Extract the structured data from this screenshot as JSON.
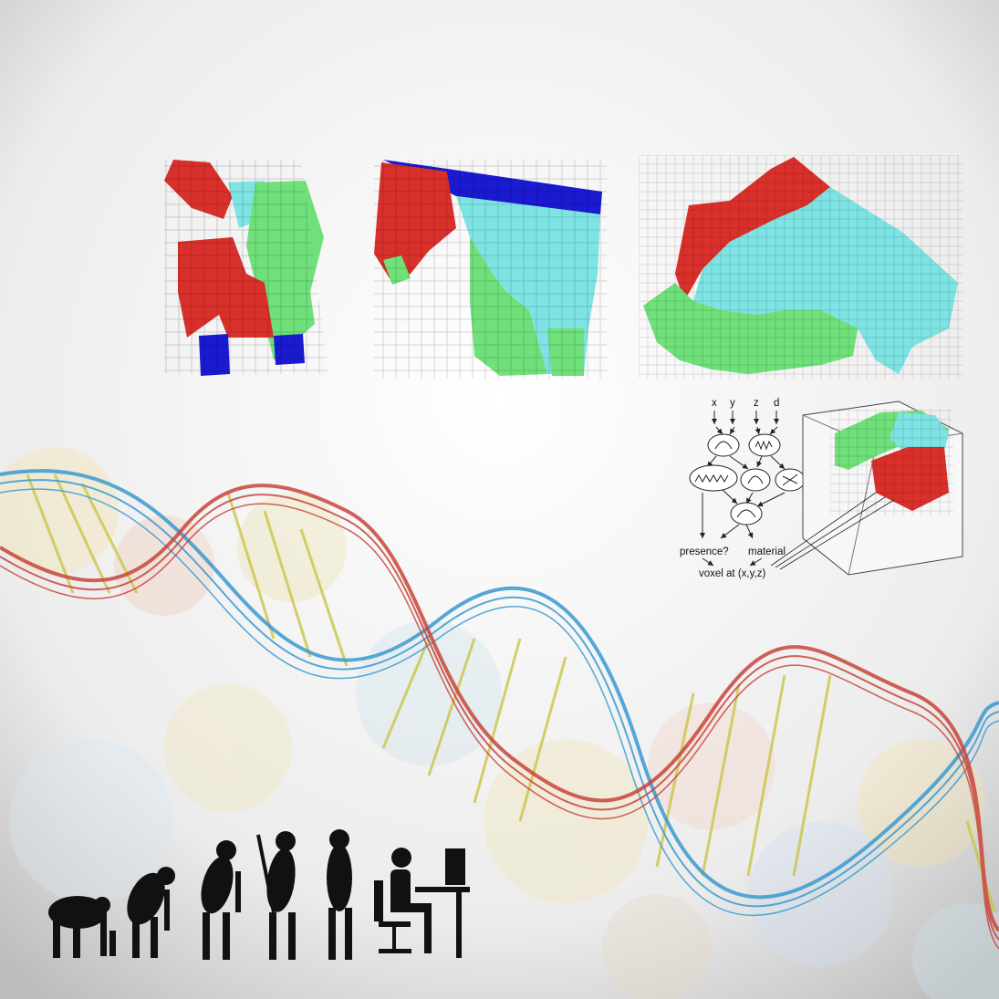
{
  "diagram": {
    "inputs": [
      "x",
      "y",
      "z",
      "d"
    ],
    "outputs": [
      "presence?",
      "material"
    ],
    "result": "voxel at (x,y,z)"
  },
  "colors": {
    "voxel_red": "#d9302b",
    "voxel_green": "#6fe07a",
    "voxel_cyan": "#7ee3e3",
    "voxel_blue": "#1a1ad0",
    "helix_blue": "#3a9ad0",
    "helix_red": "#c8463a",
    "helix_yellow": "#c9c23a",
    "silhouette": "#111111"
  },
  "icons": [
    "voxel-chair-shape",
    "voxel-table-shape",
    "voxel-couch-shape",
    "dna-helix",
    "evolution-silhouettes"
  ]
}
